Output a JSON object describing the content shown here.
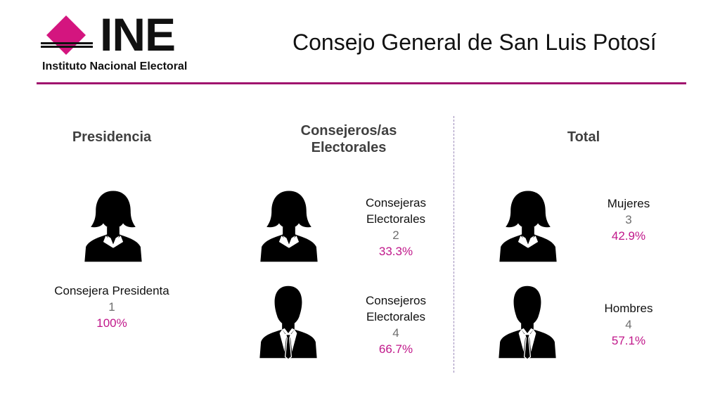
{
  "header": {
    "logo_text": "INE",
    "logo_subtitle": "Instituto Nacional Electoral",
    "title": "Consejo General de San Luis Potosí"
  },
  "colors": {
    "accent": "#a0146e",
    "percent": "#c0178a",
    "logo_pink": "#d4157f"
  },
  "columns": {
    "presidencia": {
      "heading": "Presidencia",
      "items": [
        {
          "icon": "woman-silhouette-icon",
          "label": "Consejera Presidenta",
          "count": "1",
          "percent": "100%"
        }
      ]
    },
    "consejeros": {
      "heading_line1": "Consejeros/as",
      "heading_line2": "Electorales",
      "items": [
        {
          "icon": "woman-silhouette-icon",
          "label_line1": "Consejeras",
          "label_line2": "Electorales",
          "count": "2",
          "percent": "33.3%"
        },
        {
          "icon": "man-silhouette-icon",
          "label_line1": "Consejeros",
          "label_line2": "Electorales",
          "count": "4",
          "percent": "66.7%"
        }
      ]
    },
    "total": {
      "heading": "Total",
      "items": [
        {
          "icon": "woman-silhouette-icon",
          "label": "Mujeres",
          "count": "3",
          "percent": "42.9%"
        },
        {
          "icon": "man-silhouette-icon",
          "label": "Hombres",
          "count": "4",
          "percent": "57.1%"
        }
      ]
    }
  }
}
